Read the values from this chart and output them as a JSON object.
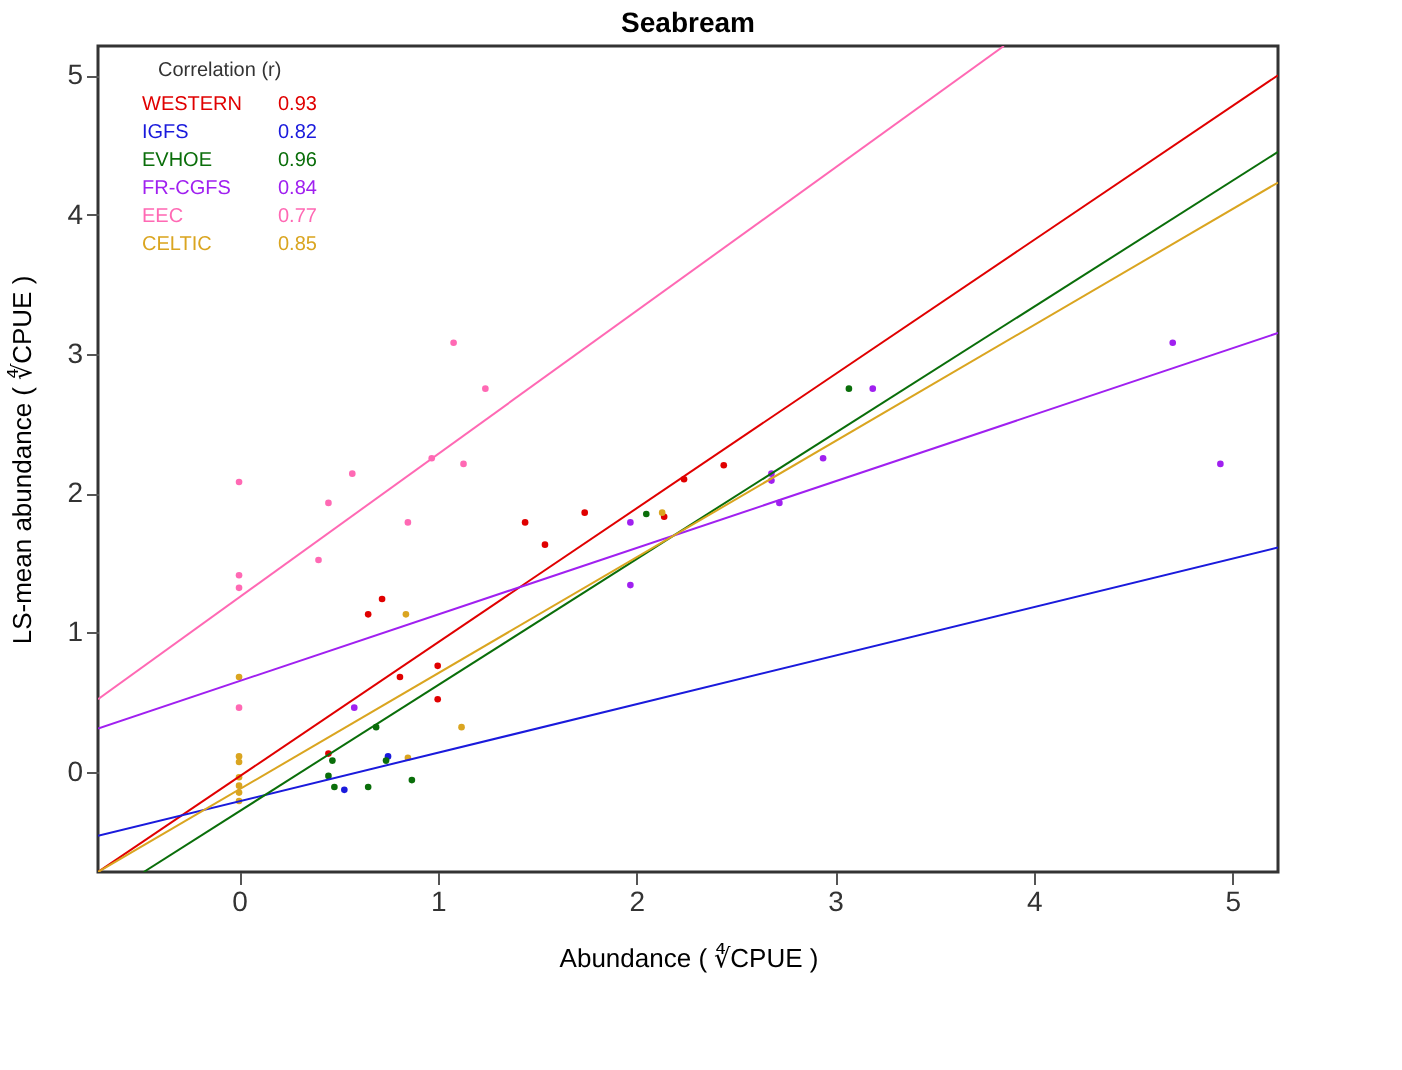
{
  "chart_data": {
    "type": "scatter",
    "title": "Seabream",
    "xlabel": "Abundance ( ∜CPUE )",
    "ylabel": "LS-mean abundance ( ∜CPUE )",
    "legend_title": "Correlation (r)",
    "legend": "top left",
    "grid": false,
    "xlim": [
      -0.71,
      5.23
    ],
    "ylim": [
      -0.72,
      5.21
    ],
    "xticks": [
      0,
      1,
      2,
      3,
      4,
      5
    ],
    "yticks": [
      0,
      1,
      2,
      3,
      4,
      5
    ],
    "annotations": [
      "0.93",
      "0.82",
      "0.96",
      "0.84",
      "0.77",
      "0.85"
    ],
    "series": [
      {
        "name": "WESTERN",
        "marker": "circle",
        "color": "#e00000",
        "x": [
          0.65,
          0.72,
          0.81,
          1.0,
          1.0,
          0.45,
          1.44,
          1.54,
          1.74,
          2.14,
          2.24,
          2.44
        ],
        "values": [
          1.13,
          1.24,
          0.68,
          0.76,
          0.52,
          0.13,
          1.79,
          1.63,
          1.86,
          1.83,
          2.1,
          2.2
        ]
      },
      {
        "name": "IGFS",
        "marker": "circle",
        "color": "#1a1adc",
        "x": [
          0.53,
          0.75
        ],
        "values": [
          -0.13,
          0.11
        ]
      },
      {
        "name": "EVHOE",
        "marker": "circle",
        "color": "#0a6e0a",
        "x": [
          0.45,
          0.48,
          0.65,
          0.69,
          0.87,
          0.74,
          0.47,
          2.05,
          3.07
        ],
        "values": [
          -0.03,
          -0.11,
          -0.11,
          0.32,
          -0.06,
          0.08,
          0.08,
          1.85,
          2.75
        ]
      },
      {
        "name": "FR-CGFS",
        "marker": "circle",
        "color": "#a020f0",
        "x": [
          0.58,
          1.97,
          1.97,
          2.68,
          2.68,
          2.72,
          2.94,
          3.19,
          4.7,
          4.94
        ],
        "values": [
          0.46,
          1.79,
          1.34,
          2.14,
          2.09,
          1.93,
          2.25,
          2.75,
          3.08,
          2.21
        ]
      },
      {
        "name": "EEC",
        "marker": "circle",
        "color": "#ff69b4",
        "x": [
          0,
          0,
          0,
          0,
          0.4,
          0.45,
          0.57,
          0.85,
          0.97,
          1.08,
          1.13,
          1.24
        ],
        "values": [
          2.08,
          1.41,
          1.32,
          0.46,
          1.52,
          1.93,
          2.14,
          1.79,
          2.25,
          3.08,
          2.21,
          2.75
        ]
      },
      {
        "name": "CELTIC",
        "marker": "circle",
        "color": "#daa520",
        "x": [
          0,
          0,
          0,
          0,
          0,
          0,
          0,
          0.84,
          1.12,
          0.85,
          2.13
        ],
        "values": [
          0.68,
          0.11,
          0.07,
          -0.04,
          -0.1,
          -0.15,
          -0.21,
          1.13,
          0.32,
          0.1,
          1.86
        ]
      },
      {
        "type": "line",
        "color": "#e00000",
        "x": [
          -0.71,
          5.23
        ],
        "values": [
          -0.72,
          5.0
        ]
      },
      {
        "type": "line",
        "color": "#1a1adc",
        "x": [
          -0.71,
          5.23
        ],
        "values": [
          -0.46,
          1.61
        ]
      },
      {
        "type": "line",
        "color": "#0a6e0a",
        "x": [
          -0.48,
          5.23
        ],
        "values": [
          -0.72,
          4.45
        ]
      },
      {
        "type": "line",
        "color": "#a020f0",
        "x": [
          -0.71,
          5.23
        ],
        "values": [
          0.31,
          3.15
        ]
      },
      {
        "type": "line",
        "color": "#ff69b4",
        "x": [
          -0.71,
          3.85
        ],
        "values": [
          0.52,
          5.21
        ]
      },
      {
        "type": "line",
        "color": "#daa520",
        "x": [
          -0.71,
          5.23
        ],
        "values": [
          -0.72,
          4.23
        ]
      }
    ]
  }
}
